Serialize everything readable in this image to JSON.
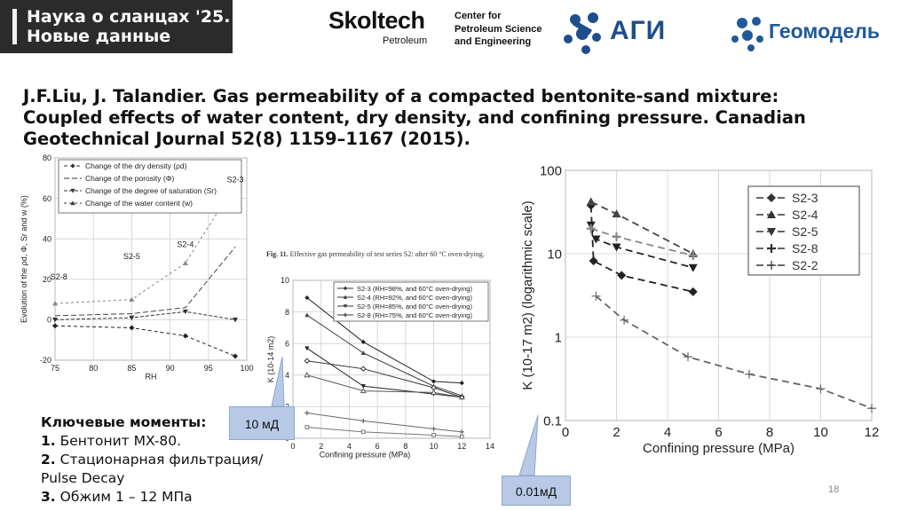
{
  "header": {
    "badge_line1": "Наука о сланцах '25.",
    "badge_line2": "Новые данные",
    "skoltech_name": "Skoltech",
    "skoltech_sub": "Petroleum",
    "skoltech_center": [
      "Center for",
      "Petroleum Science",
      "and Engineering"
    ],
    "agi_name": "АГИ",
    "geo_name": "Геомодель",
    "logo_color": "#1f4e8c"
  },
  "reference": "J.F.Liu, J. Talandier. Gas permeability of a compacted bentonite-sand mixture: Coupled effects of water content, dry density, and confining pressure. Canadian Geotechnical Journal 52(8) 1159–1167 (2015).",
  "figure_caption": {
    "label": "Fig. 11.",
    "text": "Effective gas permeability of test series S2: after 60 °C oven-drying."
  },
  "key_points": {
    "heading": "Ключевые моменты:",
    "items": [
      {
        "num": "1.",
        "text": "Бентонит MX-80."
      },
      {
        "num": "2.",
        "text": "Стационарная фильтрация/"
      },
      {
        "num": "",
        "text": "Pulse Decay"
      },
      {
        "num": "3.",
        "text": "Обжим 1 – 12 МПа"
      }
    ]
  },
  "callouts": {
    "left": "10 мД",
    "right": "0.01мД"
  },
  "page_number": "18",
  "chart_data": [
    {
      "type": "line",
      "xlabel": "RH",
      "ylabel": "Evolution of the ρd, Φ, Sr and w (%)",
      "xlim": [
        75,
        100
      ],
      "ylim": [
        -20,
        80
      ],
      "xticks": [
        75,
        80,
        85,
        90,
        95,
        100
      ],
      "yticks": [
        -20,
        0,
        20,
        40,
        60,
        80
      ],
      "grid": true,
      "legend_position": "top",
      "series": [
        {
          "name": "Change of the dry density (ρd)",
          "marker": "diamond",
          "dash": "4,3",
          "x": [
            75,
            85,
            92,
            98.5
          ],
          "y": [
            -3,
            -4,
            -8,
            -18
          ]
        },
        {
          "name": "Change of the porosity  (Φ)",
          "marker": "none",
          "dash": "6,3",
          "x": [
            75,
            85,
            92,
            98.5
          ],
          "y": [
            2,
            3,
            6,
            36
          ]
        },
        {
          "name": "Change of the degree of saturation (Sr)",
          "marker": "tri-down",
          "dash": "4,2",
          "x": [
            75,
            85,
            92,
            98.5
          ],
          "y": [
            0,
            1,
            4,
            0
          ]
        },
        {
          "name": "Change of the water content (w)",
          "marker": "tri-up",
          "dash": "3,3",
          "x": [
            75,
            85,
            92,
            98.5
          ],
          "y": [
            8,
            10,
            28,
            67
          ]
        }
      ],
      "annotations": [
        {
          "text": "S2-8",
          "x": 75.5,
          "y": 20
        },
        {
          "text": "S2-5",
          "x": 85,
          "y": 30
        },
        {
          "text": "S2-4",
          "x": 92,
          "y": 36
        },
        {
          "text": "S2-3",
          "x": 98.5,
          "y": 68
        }
      ]
    },
    {
      "type": "line",
      "xlabel": "Confining pressure (MPa)",
      "ylabel": "K (10-14 m2)",
      "xlim": [
        0,
        14
      ],
      "ylim": [
        0,
        10
      ],
      "xticks": [
        0,
        2,
        4,
        6,
        8,
        10,
        12,
        14
      ],
      "yticks": [
        0,
        2,
        4,
        6,
        8,
        10
      ],
      "grid": true,
      "legend_position": "top-right",
      "series": [
        {
          "name": "S2-3 (RH=98%, and 60°C oven-drying)",
          "marker": "diamond",
          "x": [
            1,
            5,
            10,
            12
          ],
          "y": [
            8.9,
            6.1,
            3.6,
            3.5
          ]
        },
        {
          "name": "S2-4 (RH=92%, and 60°C oven-drying)",
          "marker": "tri-up",
          "x": [
            1,
            5,
            10,
            12
          ],
          "y": [
            7.8,
            5.4,
            3.3,
            2.7
          ]
        },
        {
          "name": "S2-5 (RH=85%, and 60°C oven-drying)",
          "marker": "tri-down",
          "x": [
            1,
            5,
            10,
            12
          ],
          "y": [
            5.7,
            3.3,
            2.8,
            2.6
          ]
        },
        {
          "name": "S2-8 (RH=75%, and 60°C oven-drying)",
          "marker": "cross",
          "x": [
            1,
            5,
            10,
            12
          ],
          "y": [
            1.6,
            1.1,
            0.6,
            0.4
          ]
        },
        {
          "name": "",
          "marker": "diamond-open",
          "x": [
            1,
            5,
            10,
            12
          ],
          "y": [
            4.9,
            4.4,
            3.2,
            2.6
          ]
        },
        {
          "name": "",
          "marker": "tri-open",
          "x": [
            1,
            5,
            10,
            12
          ],
          "y": [
            4.0,
            3.0,
            2.9,
            2.6
          ]
        },
        {
          "name": "",
          "marker": "square-open",
          "x": [
            1,
            5,
            10,
            12
          ],
          "y": [
            0.7,
            0.4,
            0.2,
            0.1
          ]
        }
      ]
    },
    {
      "type": "line",
      "xlabel": "Confining pressure (MPa)",
      "ylabel": "K (10-17 m2) (logarithmic  scale)",
      "xlim": [
        0,
        12
      ],
      "ylim": [
        0.1,
        100
      ],
      "yscale": "log",
      "xticks": [
        0,
        2,
        4,
        6,
        8,
        10,
        12
      ],
      "yticks": [
        0.1,
        1,
        10,
        100
      ],
      "grid": true,
      "legend_position": "top-right",
      "series": [
        {
          "name": "S2-3",
          "marker": "diamond",
          "x": [
            1,
            1.1,
            2.2,
            5
          ],
          "y": [
            38,
            8.2,
            5.5,
            3.5
          ]
        },
        {
          "name": "S2-4",
          "marker": "tri-up",
          "x": [
            1,
            2,
            5
          ],
          "y": [
            42,
            30,
            10
          ]
        },
        {
          "name": "S2-5",
          "marker": "tri-down",
          "x": [
            1,
            1.2,
            2,
            5
          ],
          "y": [
            22,
            15,
            12,
            6.8
          ]
        },
        {
          "name": "S2-8",
          "marker": "cross-open",
          "x": [
            1,
            2,
            5
          ],
          "y": [
            20,
            16,
            9.5
          ]
        },
        {
          "name": "S2-2",
          "marker": "plus",
          "x": [
            1.2,
            2.3,
            4.8,
            7.2,
            10,
            12
          ],
          "y": [
            3.1,
            1.6,
            0.58,
            0.36,
            0.24,
            0.14
          ]
        }
      ]
    }
  ]
}
